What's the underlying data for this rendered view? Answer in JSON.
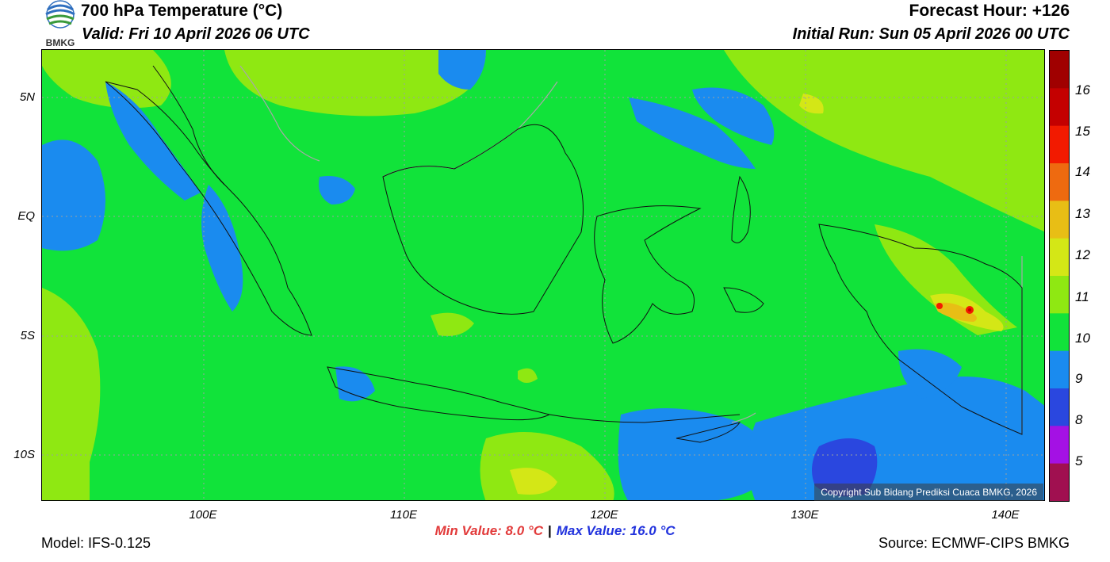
{
  "header": {
    "title": "700 hPa Temperature (°C)",
    "valid": "Valid: Fri 10 April 2026 06 UTC",
    "forecast_hour": "Forecast Hour: +126",
    "initial_run": "Initial Run: Sun 05 April 2026 00 UTC",
    "logo_text": "BMKG"
  },
  "axes": {
    "lat_labels": [
      "5N",
      "EQ",
      "5S",
      "10S"
    ],
    "lon_labels": [
      "100E",
      "110E",
      "120E",
      "130E",
      "140E"
    ]
  },
  "colorbar": {
    "labels": [
      "16",
      "15",
      "14",
      "13",
      "12",
      "11",
      "10",
      "9",
      "8",
      "5"
    ],
    "colors": [
      "#a00000",
      "#c40000",
      "#f21a00",
      "#ee6a10",
      "#e8be15",
      "#d4e716",
      "#8fe812",
      "#11e33a",
      "#1a8bef",
      "#2a47df",
      "#a411e4",
      "#a01050"
    ]
  },
  "map": {
    "copyright": "Copyright Sub Bidang Prediksi Cuaca BMKG, 2026",
    "colors": {
      "level_9": "#1a8bef",
      "level_10": "#11e33a",
      "level_11": "#8fe812",
      "level_12": "#d4e716",
      "level_13": "#e8be15",
      "level_14": "#ee6a10",
      "level_15": "#f21a00",
      "level_16": "#c40000",
      "level_8": "#2a47df"
    }
  },
  "footer": {
    "model": "Model: IFS-0.125",
    "source": "Source: ECMWF-CIPS BMKG",
    "min_value": "Min Value: 8.0 °C",
    "separator": "|",
    "max_value": "Max Value: 16.0 °C"
  }
}
